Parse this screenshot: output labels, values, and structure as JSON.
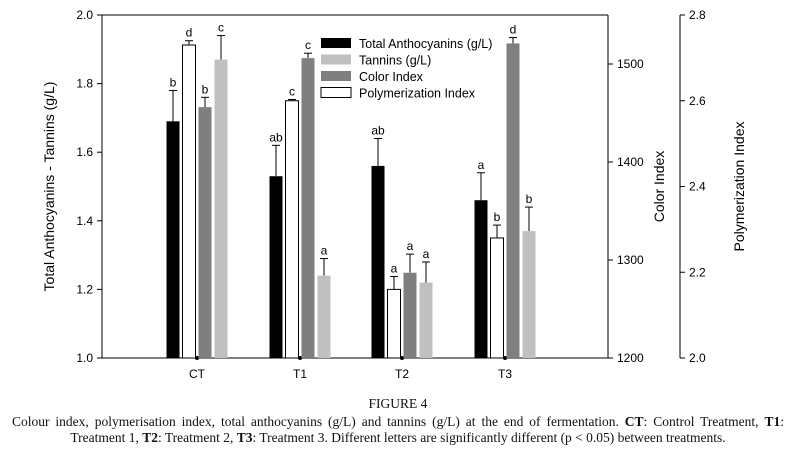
{
  "chart_data": {
    "type": "bar",
    "categories": [
      "CT",
      "T1",
      "T2",
      "T3"
    ],
    "axes": {
      "left": {
        "label": "Total Anthocyanins - Tannins (g/L)",
        "range": [
          1.0,
          2.0
        ],
        "ticks": [
          "1.0",
          "1.2",
          "1.4",
          "1.6",
          "1.8",
          "2.0"
        ]
      },
      "right_inner": {
        "label": "Color Index",
        "range": [
          1200,
          1550
        ],
        "ticks": [
          "1200",
          "1300",
          "1400",
          "1500"
        ]
      },
      "right_outer": {
        "label": "Polymerization Index",
        "range": [
          2.0,
          2.8
        ],
        "ticks": [
          "2.0",
          "2.2",
          "2.4",
          "2.6",
          "2.8"
        ]
      }
    },
    "legend_position": "top-center",
    "series": [
      {
        "name": "Total Anthocyanins (g/L)",
        "axis": "left",
        "color": "#000000",
        "values": [
          1.69,
          1.53,
          1.56,
          1.46
        ],
        "errors": [
          0.09,
          0.09,
          0.08,
          0.08
        ],
        "letters": [
          "b",
          "ab",
          "ab",
          "a"
        ]
      },
      {
        "name": "Polymerization Index",
        "axis": "right_outer",
        "color": "#ffffff",
        "values": [
          2.73,
          2.6,
          2.16,
          2.28
        ],
        "errors": [
          0.01,
          0.003,
          0.03,
          0.03
        ],
        "letters": [
          "d",
          "c",
          "a",
          "b"
        ]
      },
      {
        "name": "Color Index",
        "axis": "right_inner",
        "color": "#7f7f7f",
        "values": [
          1456,
          1506,
          1287,
          1521
        ],
        "errors": [
          10,
          5,
          19,
          6
        ],
        "letters": [
          "b",
          "c",
          "a",
          "d"
        ]
      },
      {
        "name": "Tannins (g/L)",
        "axis": "left",
        "color": "#c0c0c0",
        "values": [
          1.87,
          1.24,
          1.22,
          1.37
        ],
        "errors": [
          0.07,
          0.05,
          0.06,
          0.07
        ],
        "letters": [
          "c",
          "a",
          "a",
          "b"
        ]
      }
    ],
    "legend_order": [
      "Total Anthocyanins (g/L)",
      "Tannins (g/L)",
      "Color Index",
      "Polymerization Index"
    ]
  },
  "caption": {
    "figure_title": "FIGURE 4",
    "p1": "Colour index, polymerisation index, total anthocyanins (g/L) and tannins (g/L) at the end of fermentation. ",
    "ct": "CT",
    "p2": ": Control Treatment, ",
    "t1": "T1",
    "p3": ": Treatment 1, ",
    "t2": "T2",
    "p4": ": Treatment 2, ",
    "t3": "T3",
    "p5": ": Treatment 3. Different letters are significantly different (p < 0.05) between treatments."
  }
}
